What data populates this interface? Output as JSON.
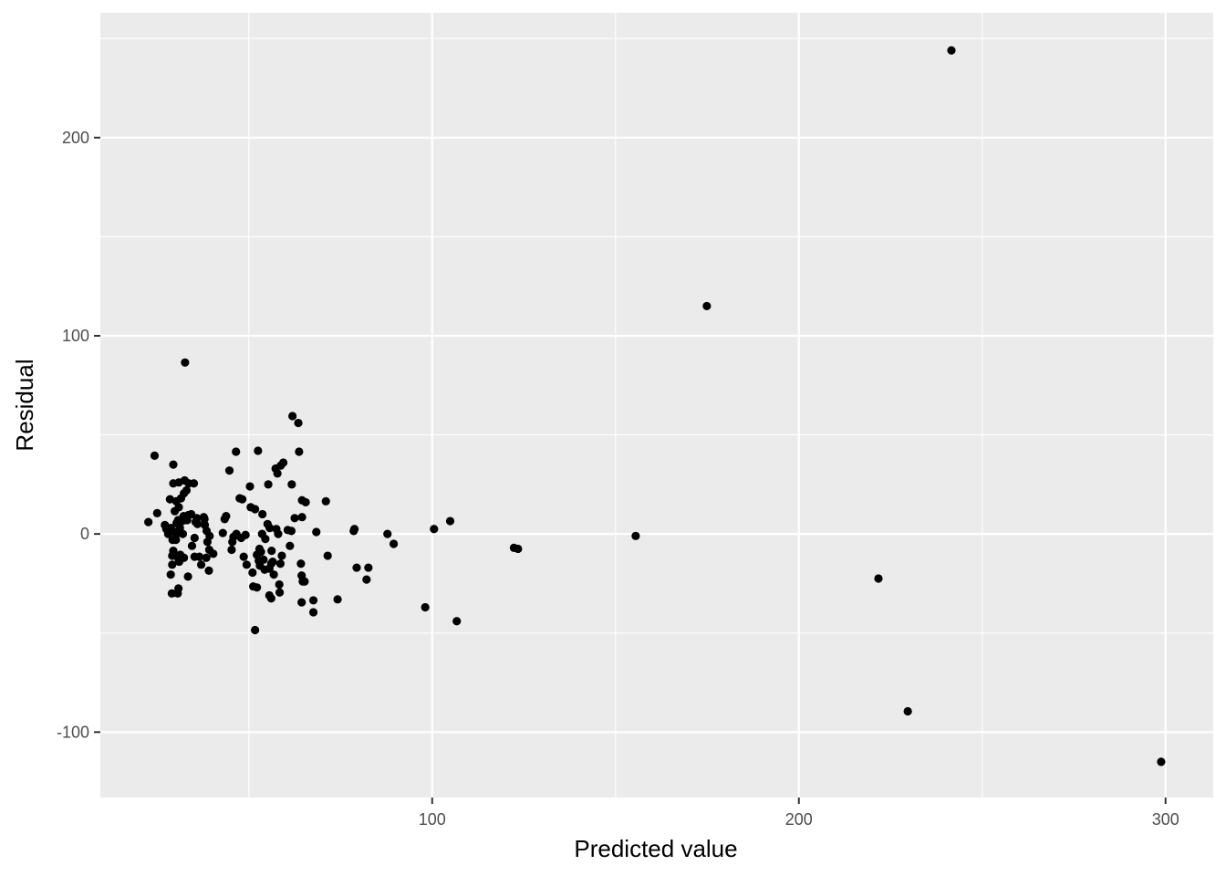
{
  "chart_data": {
    "type": "scatter",
    "title": "",
    "xlabel": "Predicted value",
    "ylabel": "Residual",
    "xlim": [
      9.5,
      313
    ],
    "ylim": [
      -133,
      263
    ],
    "x_ticks": [
      100,
      200,
      300
    ],
    "x_tick_labels": [
      "100",
      "200",
      "300"
    ],
    "x_minor_ticks": [
      50,
      150,
      250
    ],
    "y_ticks": [
      -100,
      0,
      100,
      200
    ],
    "y_tick_labels": [
      "-100",
      "0",
      "100",
      "200"
    ],
    "y_minor_ticks": [
      -50,
      50,
      150,
      250
    ],
    "grid": true,
    "legend": "none",
    "colors": {
      "panel": "#ebebeb",
      "grid": "#ffffff",
      "point": "#000000"
    },
    "points": [
      [
        241.6,
        244
      ],
      [
        174.9,
        115
      ],
      [
        32.6,
        86.5
      ],
      [
        298.8,
        -115
      ],
      [
        229.7,
        -89.5
      ],
      [
        221.7,
        -22.5
      ],
      [
        155.5,
        -1
      ],
      [
        122.3,
        -7
      ],
      [
        123.4,
        -7.5
      ],
      [
        106.7,
        -44
      ],
      [
        98.1,
        -37
      ],
      [
        104.9,
        6.5
      ],
      [
        100.5,
        2.5
      ],
      [
        87.8,
        0
      ],
      [
        89.5,
        -5
      ],
      [
        82.1,
        -23
      ],
      [
        82.6,
        -17
      ],
      [
        79.4,
        -17
      ],
      [
        78.8,
        2.5
      ],
      [
        78.6,
        1.5
      ],
      [
        74.2,
        -33
      ],
      [
        71.5,
        -11
      ],
      [
        71.0,
        16.5
      ],
      [
        68.4,
        1
      ],
      [
        67.6,
        -33.5
      ],
      [
        67.6,
        -39.5
      ],
      [
        65.5,
        16
      ],
      [
        65.2,
        -24
      ],
      [
        64.7,
        -24
      ],
      [
        64.4,
        -21
      ],
      [
        64.4,
        -34.5
      ],
      [
        64.2,
        -15
      ],
      [
        64.5,
        8.5
      ],
      [
        64.5,
        17
      ],
      [
        63.7,
        41.5
      ],
      [
        63.5,
        56
      ],
      [
        62.5,
        8
      ],
      [
        61.9,
        59.5
      ],
      [
        61.7,
        25
      ],
      [
        61.6,
        1.5
      ],
      [
        61.2,
        -6
      ],
      [
        60.6,
        2
      ],
      [
        59.4,
        36
      ],
      [
        58.7,
        34.5
      ],
      [
        59.0,
        -11
      ],
      [
        58.6,
        -15
      ],
      [
        58.4,
        -29.5
      ],
      [
        58.3,
        -25.5
      ],
      [
        57.8,
        30.5
      ],
      [
        57.3,
        33
      ],
      [
        56.8,
        -20.5
      ],
      [
        57.5,
        2.5
      ],
      [
        58.0,
        0
      ],
      [
        56.5,
        -14
      ],
      [
        56.2,
        -8.5
      ],
      [
        56.1,
        -15
      ],
      [
        56.1,
        -32.5
      ],
      [
        55.7,
        3
      ],
      [
        55.6,
        -17.5
      ],
      [
        55.6,
        -31
      ],
      [
        55.3,
        25
      ],
      [
        55.1,
        5
      ],
      [
        54.5,
        -2.5
      ],
      [
        54.3,
        -18
      ],
      [
        54.0,
        -13
      ],
      [
        53.7,
        10
      ],
      [
        53.6,
        0
      ],
      [
        53.3,
        -9
      ],
      [
        53.0,
        -16
      ],
      [
        52.9,
        -7.5
      ],
      [
        52.7,
        -13.5
      ],
      [
        52.5,
        42
      ],
      [
        52.2,
        -27
      ],
      [
        52.2,
        -10.5
      ],
      [
        51.7,
        -48.5
      ],
      [
        51.7,
        12.5
      ],
      [
        51.0,
        -19.5
      ],
      [
        51.2,
        -26.5
      ],
      [
        50.5,
        13.5
      ],
      [
        50.3,
        24
      ],
      [
        49.4,
        -15.5
      ],
      [
        49.1,
        -0.5
      ],
      [
        48.6,
        -11.5
      ],
      [
        48.2,
        17.5
      ],
      [
        47.9,
        -2
      ],
      [
        47.5,
        18
      ],
      [
        46.6,
        0
      ],
      [
        46.5,
        41.5
      ],
      [
        45.8,
        -1.5
      ],
      [
        45.5,
        -4
      ],
      [
        45.3,
        -8
      ],
      [
        44.7,
        32
      ],
      [
        43.8,
        9
      ],
      [
        43.4,
        7.5
      ],
      [
        42.9,
        0.5
      ],
      [
        40.3,
        -10
      ],
      [
        39.3,
        -1
      ],
      [
        39.2,
        -8
      ],
      [
        39.1,
        -18.5
      ],
      [
        38.7,
        -4
      ],
      [
        38.5,
        1.5
      ],
      [
        38.4,
        -12
      ],
      [
        38.0,
        4.5
      ],
      [
        37.9,
        7.5
      ],
      [
        37.7,
        8.5
      ],
      [
        37.0,
        -15.5
      ],
      [
        36.5,
        -11.5
      ],
      [
        36.0,
        5
      ],
      [
        35.8,
        8
      ],
      [
        35.5,
        6
      ],
      [
        35.0,
        25.5
      ],
      [
        35.2,
        -2
      ],
      [
        35.2,
        -11.5
      ],
      [
        34.5,
        -6
      ],
      [
        34.3,
        10
      ],
      [
        33.5,
        9.5
      ],
      [
        33.6,
        25.5
      ],
      [
        33.2,
        7
      ],
      [
        33.0,
        22
      ],
      [
        33.4,
        -21.5
      ],
      [
        32.5,
        27
      ],
      [
        32.5,
        7
      ],
      [
        32.3,
        20.5
      ],
      [
        32.2,
        9
      ],
      [
        32.3,
        -12
      ],
      [
        32.0,
        0
      ],
      [
        31.8,
        6.5
      ],
      [
        31.5,
        18
      ],
      [
        31.3,
        -10.5
      ],
      [
        31.2,
        3
      ],
      [
        31.0,
        -14
      ],
      [
        30.9,
        26
      ],
      [
        30.9,
        13.5
      ],
      [
        30.8,
        -12.5
      ],
      [
        30.8,
        -27.5
      ],
      [
        30.7,
        7
      ],
      [
        30.6,
        -30
      ],
      [
        30.3,
        5.5
      ],
      [
        30.3,
        0
      ],
      [
        30.1,
        -3
      ],
      [
        30.2,
        16.5
      ],
      [
        30.2,
        -11
      ],
      [
        29.8,
        11.5
      ],
      [
        29.7,
        1
      ],
      [
        29.4,
        35
      ],
      [
        29.4,
        -8.5
      ],
      [
        29.4,
        25.5
      ],
      [
        29.2,
        -3
      ],
      [
        29.1,
        -11
      ],
      [
        29.1,
        -15.5
      ],
      [
        29.0,
        -30
      ],
      [
        28.7,
        -20.5
      ],
      [
        28.7,
        3
      ],
      [
        28.5,
        17.5
      ],
      [
        28.0,
        0
      ],
      [
        27.5,
        2.5
      ],
      [
        27.1,
        4.5
      ],
      [
        25.0,
        10.5
      ],
      [
        24.3,
        39.5
      ],
      [
        22.6,
        6
      ]
    ]
  }
}
